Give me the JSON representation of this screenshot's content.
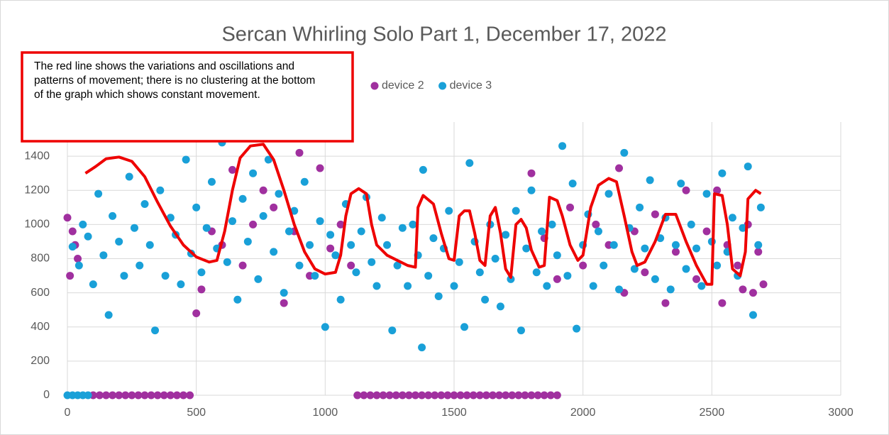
{
  "chart_data": {
    "type": "scatter",
    "title": "Sercan Whirling Solo Part 1, December 17, 2022",
    "xlim": [
      0,
      3000
    ],
    "xticks": [
      0,
      500,
      1000,
      1500,
      2000,
      2500,
      3000
    ],
    "ylim": [
      0,
      1600
    ],
    "yticks": [
      0,
      200,
      400,
      600,
      800,
      1000,
      1200,
      1400
    ],
    "grid": true,
    "legend": "top",
    "series": [
      {
        "name": "device 2",
        "color": "#a0309f",
        "x": [
          0,
          10,
          20,
          30,
          40,
          500,
          520,
          560,
          600,
          640,
          680,
          720,
          760,
          800,
          840,
          880,
          900,
          940,
          980,
          1020,
          1060,
          1100,
          1800,
          1850,
          1900,
          1950,
          2000,
          2050,
          2100,
          2140,
          2160,
          2200,
          2240,
          2280,
          2320,
          2360,
          2400,
          2440,
          2480,
          2520,
          2540,
          2560,
          2600,
          2620,
          2640,
          2660,
          2680,
          2700,
          100,
          125,
          150,
          175,
          200,
          225,
          250,
          275,
          300,
          325,
          350,
          375,
          400,
          425,
          450,
          475,
          1125,
          1150,
          1175,
          1200,
          1225,
          1250,
          1275,
          1300,
          1325,
          1350,
          1375,
          1400,
          1425,
          1450,
          1475,
          1500,
          1525,
          1550,
          1575,
          1600,
          1625,
          1650,
          1675,
          1700,
          1725,
          1750,
          1775,
          1800,
          1825,
          1850,
          1875,
          1900
        ],
        "values": [
          1040,
          700,
          960,
          880,
          800,
          480,
          620,
          960,
          880,
          1320,
          760,
          1000,
          1200,
          1100,
          540,
          960,
          1420,
          700,
          1330,
          860,
          1000,
          760,
          1300,
          920,
          680,
          1100,
          760,
          1000,
          880,
          1330,
          600,
          960,
          720,
          1060,
          540,
          840,
          1200,
          680,
          960,
          1200,
          540,
          880,
          760,
          620,
          1000,
          600,
          840,
          650,
          0,
          0,
          0,
          0,
          0,
          0,
          0,
          0,
          0,
          0,
          0,
          0,
          0,
          0,
          0,
          0,
          0,
          0,
          0,
          0,
          0,
          0,
          0,
          0,
          0,
          0,
          0,
          0,
          0,
          0,
          0,
          0,
          0,
          0,
          0,
          0,
          0,
          0,
          0,
          0,
          0,
          0,
          0,
          0,
          0,
          0,
          0,
          0
        ]
      },
      {
        "name": "device 3",
        "color": "#19a0d8",
        "x": [
          20,
          45,
          60,
          80,
          100,
          120,
          140,
          160,
          175,
          200,
          220,
          240,
          260,
          280,
          300,
          320,
          340,
          360,
          380,
          400,
          420,
          440,
          460,
          480,
          500,
          520,
          540,
          560,
          580,
          600,
          620,
          640,
          660,
          680,
          700,
          720,
          740,
          760,
          780,
          800,
          820,
          840,
          860,
          880,
          900,
          920,
          940,
          960,
          980,
          1000,
          1020,
          1040,
          1060,
          1080,
          1100,
          1120,
          1140,
          1160,
          1180,
          1200,
          1220,
          1240,
          1260,
          1280,
          1300,
          1320,
          1340,
          1360,
          1375,
          1380,
          1400,
          1420,
          1440,
          1460,
          1480,
          1500,
          1520,
          1540,
          1560,
          1580,
          1600,
          1620,
          1640,
          1660,
          1680,
          1700,
          1720,
          1740,
          1760,
          1780,
          1800,
          1820,
          1840,
          1860,
          1880,
          1900,
          1920,
          1940,
          1960,
          1975,
          2000,
          2020,
          2040,
          2060,
          2080,
          2100,
          2120,
          2140,
          2160,
          2180,
          2200,
          2220,
          2240,
          2260,
          2280,
          2300,
          2320,
          2340,
          2360,
          2380,
          2400,
          2420,
          2440,
          2460,
          2480,
          2500,
          2520,
          2540,
          2560,
          2580,
          2600,
          2620,
          2640,
          2660,
          2680,
          2690,
          0,
          20,
          40,
          60,
          80
        ],
        "values": [
          870,
          760,
          1000,
          930,
          650,
          1180,
          820,
          470,
          1050,
          900,
          700,
          1280,
          980,
          760,
          1120,
          880,
          380,
          1200,
          700,
          1040,
          940,
          650,
          1380,
          830,
          1100,
          720,
          980,
          1250,
          860,
          1480,
          780,
          1020,
          560,
          1150,
          900,
          1300,
          680,
          1050,
          1380,
          840,
          1180,
          600,
          960,
          1080,
          760,
          1250,
          880,
          700,
          1020,
          400,
          940,
          820,
          560,
          1120,
          880,
          720,
          960,
          1160,
          780,
          640,
          1040,
          880,
          380,
          760,
          980,
          640,
          1000,
          820,
          280,
          1320,
          700,
          920,
          580,
          860,
          1080,
          640,
          780,
          400,
          1360,
          900,
          720,
          560,
          1000,
          800,
          520,
          940,
          680,
          1080,
          380,
          860,
          1200,
          720,
          960,
          640,
          1000,
          820,
          1460,
          700,
          1240,
          390,
          880,
          1060,
          640,
          960,
          760,
          1180,
          880,
          620,
          1420,
          980,
          740,
          1100,
          860,
          1260,
          680,
          920,
          1040,
          620,
          880,
          1240,
          740,
          1000,
          860,
          640,
          1180,
          900,
          760,
          1300,
          840,
          1040,
          700,
          980,
          1340,
          470,
          880,
          1100,
          0,
          0,
          0,
          0,
          0
        ]
      }
    ],
    "annotations": [
      {
        "text": "The red line shows the variations and oscillations and patterns of movement; there is no clustering at the bottom of the graph which shows constant movement.",
        "color": "#ee0000",
        "x": [
          70,
          110,
          150,
          200,
          250,
          300,
          350,
          400,
          450,
          500,
          550,
          580,
          610,
          640,
          670,
          710,
          760,
          800,
          840,
          880,
          920,
          960,
          1000,
          1040,
          1060,
          1080,
          1100,
          1130,
          1160,
          1180,
          1200,
          1240,
          1280,
          1320,
          1350,
          1360,
          1380,
          1420,
          1450,
          1480,
          1500,
          1520,
          1540,
          1560,
          1580,
          1600,
          1620,
          1640,
          1660,
          1680,
          1700,
          1720,
          1740,
          1760,
          1780,
          1800,
          1830,
          1850,
          1870,
          1900,
          1920,
          1950,
          1980,
          2000,
          2030,
          2060,
          2100,
          2130,
          2160,
          2190,
          2210,
          2240,
          2280,
          2320,
          2360,
          2400,
          2440,
          2480,
          2500,
          2510,
          2540,
          2560,
          2580,
          2610,
          2630,
          2640,
          2670,
          2690
        ],
        "y": [
          1300,
          1340,
          1385,
          1395,
          1370,
          1280,
          1130,
          990,
          880,
          810,
          780,
          790,
          960,
          1200,
          1390,
          1460,
          1470,
          1380,
          1200,
          1000,
          840,
          740,
          710,
          720,
          820,
          1050,
          1180,
          1210,
          1180,
          1000,
          880,
          820,
          790,
          760,
          750,
          1100,
          1170,
          1120,
          950,
          800,
          790,
          1050,
          1080,
          1080,
          950,
          790,
          760,
          1050,
          1100,
          950,
          740,
          690,
          1000,
          1030,
          980,
          850,
          750,
          760,
          1160,
          1140,
          1050,
          880,
          790,
          820,
          1100,
          1230,
          1270,
          1250,
          1050,
          840,
          760,
          780,
          900,
          1060,
          1060,
          900,
          760,
          650,
          650,
          1180,
          1170,
          1000,
          740,
          700,
          840,
          1150,
          1200,
          1180
        ]
      }
    ]
  }
}
